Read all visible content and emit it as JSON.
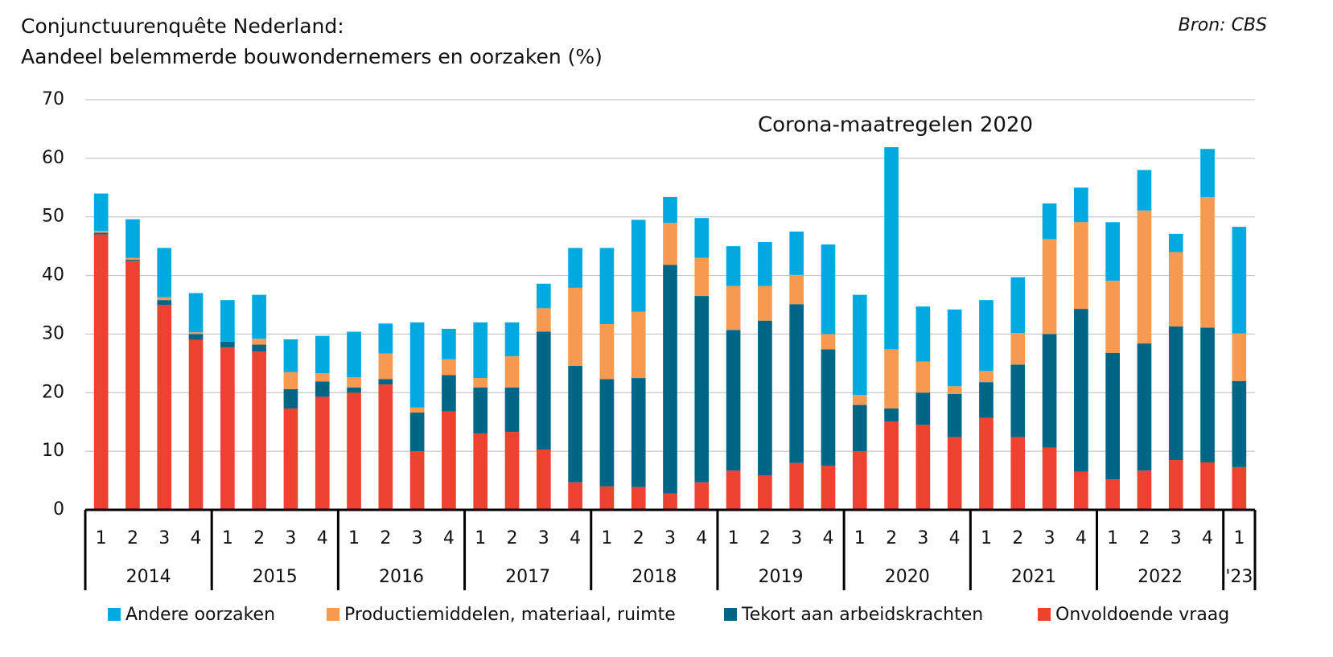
{
  "chart_data": {
    "type": "stacked_bar",
    "title": "Conjunctuurenquête Nederland:",
    "subtitle": "Aandeel belemmerde bouwondernemers en oorzaken (%)",
    "source": "Bron: CBS",
    "annotation": "Corona-maatregelen 2020",
    "year_groups": [
      {
        "label": "2014",
        "quarters": [
          "1",
          "2",
          "3",
          "4"
        ]
      },
      {
        "label": "2015",
        "quarters": [
          "1",
          "2",
          "3",
          "4"
        ]
      },
      {
        "label": "2016",
        "quarters": [
          "1",
          "2",
          "3",
          "4"
        ]
      },
      {
        "label": "2017",
        "quarters": [
          "1",
          "2",
          "3",
          "4"
        ]
      },
      {
        "label": "2018",
        "quarters": [
          "1",
          "2",
          "3",
          "4"
        ]
      },
      {
        "label": "2019",
        "quarters": [
          "1",
          "2",
          "3",
          "4"
        ]
      },
      {
        "label": "2020",
        "quarters": [
          "1",
          "2",
          "3",
          "4"
        ]
      },
      {
        "label": "2021",
        "quarters": [
          "1",
          "2",
          "3",
          "4"
        ]
      },
      {
        "label": "2022",
        "quarters": [
          "1",
          "2",
          "3",
          "4"
        ]
      },
      {
        "label": "'23",
        "quarters": [
          "1"
        ]
      }
    ],
    "series": [
      {
        "name": "Andere oorzaken",
        "color": "#00a9e0",
        "values": [
          6.4,
          6.6,
          8.4,
          6.7,
          7.1,
          7.5,
          5.6,
          6.4,
          7.8,
          5.1,
          14.5,
          5.2,
          9.5,
          5.8,
          4.2,
          6.8,
          13,
          15.7,
          4.4,
          6.8,
          6.8,
          7.5,
          7.4,
          15.3,
          17.1,
          34.5,
          9.4,
          13.1,
          12.1,
          9.5,
          6.1,
          5.9,
          10,
          6.9,
          3.1,
          8.2,
          18.2
        ]
      },
      {
        "name": "Productiemiddelen, materiaal, ruimte",
        "color": "#f79a4f",
        "values": [
          0.3,
          0.3,
          0.5,
          0.3,
          0,
          1,
          2.9,
          1.4,
          1.7,
          4.4,
          0.9,
          2.7,
          1.6,
          5.3,
          4,
          13.3,
          9.4,
          11.3,
          7.2,
          6.5,
          7.5,
          5.9,
          5,
          2.6,
          1.7,
          10.1,
          5.3,
          1.3,
          1.9,
          5.4,
          16.2,
          14.8,
          12.3,
          22.7,
          12.7,
          22.3,
          8.1
        ]
      },
      {
        "name": "Tekort aan arbeidskrachten",
        "color": "#006685",
        "values": [
          0.3,
          0.2,
          0.8,
          1,
          1,
          1.2,
          3.3,
          2.6,
          0.9,
          0.9,
          6.6,
          6.2,
          7.9,
          7.6,
          20.1,
          19.9,
          18.3,
          18.6,
          39,
          31.8,
          24,
          26.4,
          27.1,
          19.9,
          7.9,
          2.2,
          5.5,
          7.4,
          6.1,
          12.4,
          19.4,
          27.8,
          21.6,
          21.7,
          22.8,
          23,
          14.7
        ]
      },
      {
        "name": "Onvoldoende vraag",
        "color": "#ee4230",
        "values": [
          47,
          42.5,
          35,
          29,
          27.7,
          27,
          17.3,
          19.3,
          20,
          21.4,
          10,
          16.8,
          13,
          13.3,
          10.3,
          4.7,
          4,
          3.9,
          2.8,
          4.7,
          6.7,
          5.9,
          8,
          7.5,
          10,
          15.1,
          14.5,
          12.4,
          15.7,
          12.4,
          10.6,
          6.5,
          5.2,
          6.7,
          8.5,
          8.1,
          7.3
        ]
      }
    ],
    "ylim": [
      0,
      70
    ],
    "yticks": [
      0,
      10,
      20,
      30,
      40,
      50,
      60,
      70
    ],
    "grid": true
  }
}
